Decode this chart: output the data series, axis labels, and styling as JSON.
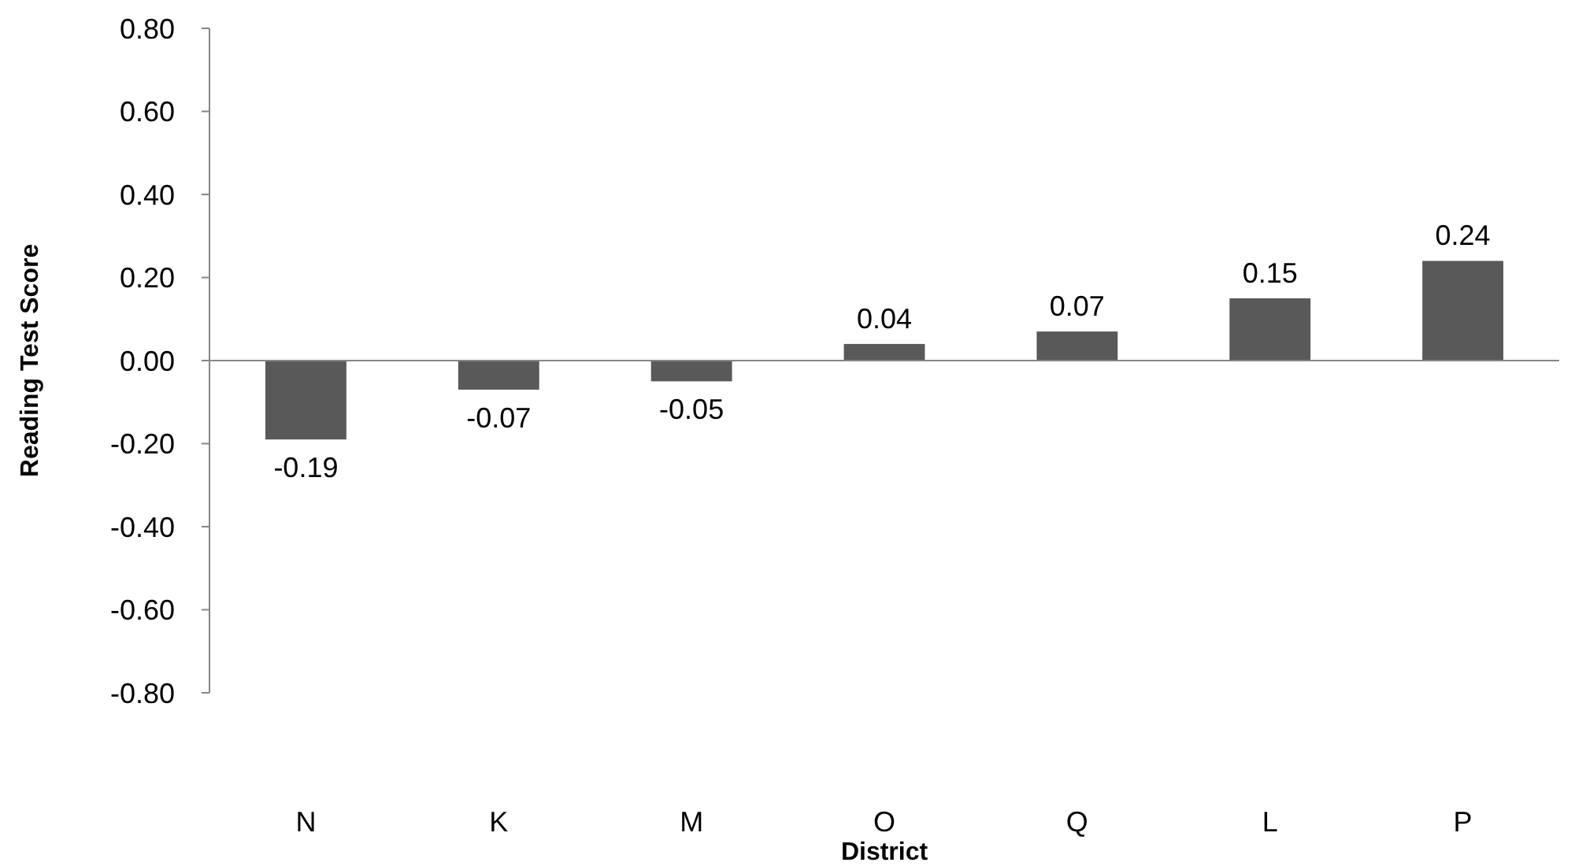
{
  "chart_data": {
    "type": "bar",
    "xlabel": "District",
    "ylabel": "Reading Test Score",
    "categories": [
      "N",
      "K",
      "M",
      "O",
      "Q",
      "L",
      "P"
    ],
    "values": [
      -0.19,
      -0.07,
      -0.05,
      0.04,
      0.07,
      0.15,
      0.24
    ],
    "color": "#595959",
    "data_labels": true,
    "legend": false,
    "ylim": [
      -0.8,
      0.8
    ],
    "yticks": [
      {
        "value": -0.8,
        "label": "-0.80"
      },
      {
        "value": -0.6,
        "label": "-0.60"
      },
      {
        "value": -0.4,
        "label": "-0.40"
      },
      {
        "value": -0.2,
        "label": "-0.20"
      },
      {
        "value": 0,
        "label": "0.00"
      },
      {
        "value": 0.2,
        "label": "0.20"
      },
      {
        "value": 0.4,
        "label": "0.40"
      },
      {
        "value": 0.6,
        "label": "0.60"
      },
      {
        "value": 0.8,
        "label": "0.80"
      }
    ]
  }
}
